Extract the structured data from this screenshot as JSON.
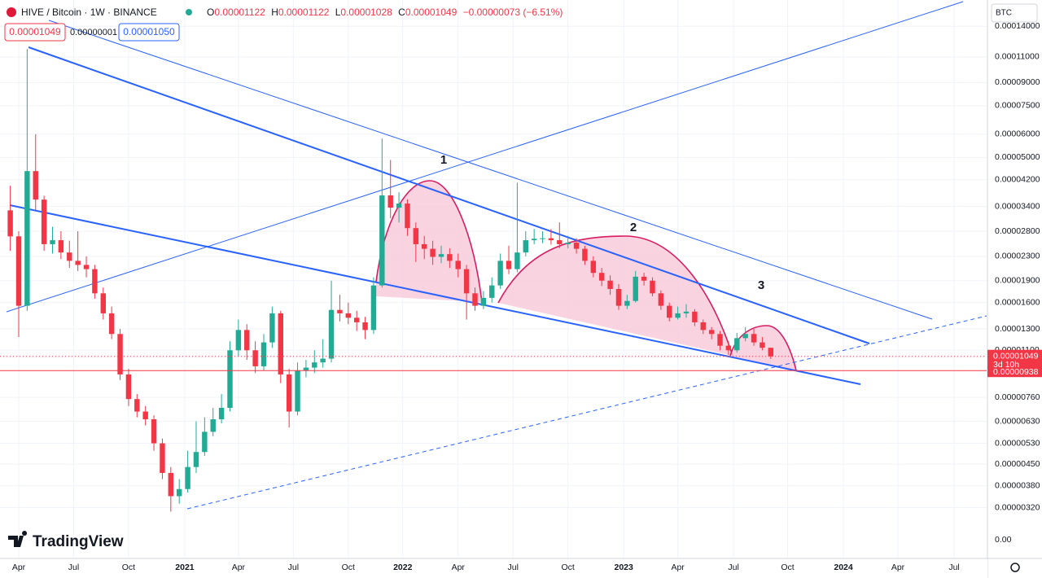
{
  "header": {
    "symbol": "HIVE / Bitcoin · 1W · BINANCE",
    "ohlc": [
      {
        "key": "O",
        "value": "0.00001122"
      },
      {
        "key": "H",
        "value": "0.00001122"
      },
      {
        "key": "L",
        "value": "0.00001028"
      },
      {
        "key": "C",
        "value": "0.00001049"
      }
    ],
    "change": "−0.00000073 (−6.51%)",
    "sell": "0.00001049",
    "spread": "0.00000001",
    "buy": "0.00001050",
    "currency": "BTC"
  },
  "branding": "TradingView",
  "chart_data": {
    "type": "candlestick",
    "log_scale": true,
    "grid": true,
    "up_color": "#22ab94",
    "down_color": "#f23645",
    "x": [
      -2,
      0,
      2,
      4,
      6,
      8,
      10,
      12,
      14,
      16,
      18,
      20,
      22,
      24,
      26,
      28,
      30,
      32,
      34,
      36,
      38,
      40,
      42,
      44,
      46,
      48,
      50,
      52,
      54,
      56,
      58,
      60,
      62,
      64,
      66,
      68,
      70,
      72,
      74,
      76,
      78,
      80,
      82,
      84,
      86,
      88,
      90,
      92,
      94,
      96,
      98,
      100,
      102,
      104,
      106,
      108,
      110,
      112,
      114,
      116,
      118,
      120,
      122,
      124,
      126,
      128,
      130,
      132,
      134,
      136,
      138,
      140,
      142,
      144,
      146,
      148,
      150,
      152,
      154,
      156,
      158,
      160,
      162,
      164,
      166,
      168,
      170,
      172,
      174,
      176,
      178
    ],
    "open": [
      3.3e-05,
      2.69e-05,
      1.56e-05,
      4.49e-05,
      3.59e-05,
      2.53e-05,
      2.61e-05,
      2.37e-05,
      2.22e-05,
      2.15e-05,
      2.08e-05,
      1.72e-05,
      1.47e-05,
      1.25e-05,
      9.1e-06,
      7.5e-06,
      6.8e-06,
      6.4e-06,
      5.3e-06,
      4.2e-06,
      3.5e-06,
      3.7e-06,
      4.4e-06,
      4.95e-06,
      5.8e-06,
      6.4e-06,
      7e-06,
      1.1e-05,
      1.29e-05,
      1.1e-05,
      9.7e-06,
      1.17e-05,
      1.47e-05,
      9.1e-06,
      6.8e-06,
      9.4e-06,
      9.6e-06,
      1e-05,
      1.03e-05,
      1.51e-05,
      1.47e-05,
      1.42e-05,
      1.37e-05,
      1.29e-05,
      1.83e-05,
      3.71e-05,
      3.37e-05,
      3.48e-05,
      2.87e-05,
      2.53e-05,
      2.44e-05,
      2.29e-05,
      2.34e-05,
      2.22e-05,
      2.08e-05,
      1.72e-05,
      1.56e-05,
      1.66e-05,
      1.83e-05,
      2.22e-05,
      2.08e-05,
      2.37e-05,
      2.61e-05,
      2.64e-05,
      2.65e-05,
      2.61e-05,
      2.53e-05,
      2.56e-05,
      2.44e-05,
      2.22e-05,
      2.02e-05,
      1.9e-05,
      1.78e-05,
      1.56e-05,
      1.62e-05,
      1.96e-05,
      1.9e-05,
      1.72e-05,
      1.56e-05,
      1.42e-05,
      1.47e-05,
      1.49e-05,
      1.37e-05,
      1.29e-05,
      1.25e-05,
      1.14e-05,
      1.1e-05,
      1.21e-05,
      1.25e-05,
      1.17e-05,
      1.122e-05
    ],
    "high": [
      4e-05,
      2.8e-05,
      0.000117,
      6e-05,
      3.7e-05,
      2.9e-05,
      2.8e-05,
      2.6e-05,
      2.8e-05,
      2.3e-05,
      2.15e-05,
      1.8e-05,
      1.55e-05,
      1.3e-05,
      9.5e-06,
      7.8e-06,
      7.1e-06,
      6.6e-06,
      5.5e-06,
      4.4e-06,
      4e-06,
      5e-06,
      6.3e-06,
      6.5e-06,
      7e-06,
      7.8e-06,
      1.18e-05,
      1.4e-05,
      1.35e-05,
      1.18e-05,
      1.25e-05,
      1.55e-05,
      1.5e-05,
      9.5e-06,
      1e-05,
      1.02e-05,
      1.1e-05,
      1.2e-05,
      1.9e-05,
      1.7e-05,
      1.6e-05,
      1.5e-05,
      1.43e-05,
      1.95e-05,
      5.8e-05,
      4.9e-05,
      3.8e-05,
      3.6e-05,
      3e-05,
      2.7e-05,
      2.6e-05,
      2.5e-05,
      2.45e-05,
      2.35e-05,
      2.15e-05,
      1.8e-05,
      1.75e-05,
      1.95e-05,
      2.35e-05,
      2.5e-05,
      4.1e-05,
      2.8e-05,
      2.85e-05,
      2.8e-05,
      2.85e-05,
      3e-05,
      2.7e-05,
      2.65e-05,
      2.5e-05,
      2.3e-05,
      2.1e-05,
      1.98e-05,
      1.85e-05,
      1.7e-05,
      2.05e-05,
      2.02e-05,
      1.95e-05,
      1.76e-05,
      1.6e-05,
      1.55e-05,
      1.58e-05,
      1.52e-05,
      1.4e-05,
      1.32e-05,
      1.28e-05,
      1.18e-05,
      1.26e-05,
      1.32e-05,
      1.3e-05,
      1.22e-05,
      1.122e-05
    ],
    "low": [
      2.4e-05,
      1.22e-05,
      1.5e-05,
      3.3e-05,
      2.4e-05,
      2.35e-05,
      2.25e-05,
      2.1e-05,
      2.05e-05,
      1.95e-05,
      1.65e-05,
      1.4e-05,
      1.2e-05,
      8.7e-06,
      7.1e-06,
      6.5e-06,
      6.1e-06,
      5e-06,
      4e-06,
      3.1e-06,
      3.3e-06,
      3.6e-06,
      4.2e-06,
      4.8e-06,
      5.6e-06,
      6.2e-06,
      6.8e-06,
      1.05e-05,
      1.02e-05,
      9.2e-06,
      9.4e-06,
      1.12e-05,
      8.5e-06,
      6e-06,
      6.6e-06,
      8.9e-06,
      9.2e-06,
      9.6e-06,
      1e-05,
      1.38e-05,
      1.35e-05,
      1.28e-05,
      1.2e-05,
      1.25e-05,
      1.8e-05,
      3.1e-05,
      3e-05,
      2.7e-05,
      2.2e-05,
      2.25e-05,
      2.15e-05,
      2.18e-05,
      2.1e-05,
      1.95e-05,
      1.4e-05,
      1.5e-05,
      1.52e-05,
      1.6e-05,
      1.78e-05,
      2e-05,
      2.03e-05,
      2.3e-05,
      2.53e-05,
      2.55e-05,
      2.52e-05,
      2.45e-05,
      2.45e-05,
      2.35e-05,
      2.15e-05,
      1.95e-05,
      1.82e-05,
      1.7e-05,
      1.51e-05,
      1.52e-05,
      1.6e-05,
      1.83e-05,
      1.68e-05,
      1.51e-05,
      1.38e-05,
      1.4e-05,
      1.42e-05,
      1.33e-05,
      1.25e-05,
      1.2e-05,
      1.1e-05,
      1.06e-05,
      1.08e-05,
      1.18e-05,
      1.14e-05,
      1.1e-05,
      1.028e-05
    ],
    "close": [
      2.69e-05,
      1.56e-05,
      4.49e-05,
      3.59e-05,
      2.53e-05,
      2.61e-05,
      2.37e-05,
      2.22e-05,
      2.15e-05,
      2.08e-05,
      1.72e-05,
      1.47e-05,
      1.25e-05,
      9.1e-06,
      7.5e-06,
      6.8e-06,
      6.4e-06,
      5.3e-06,
      4.2e-06,
      3.5e-06,
      3.7e-06,
      4.4e-06,
      4.95e-06,
      5.8e-06,
      6.4e-06,
      7e-06,
      1.1e-05,
      1.29e-05,
      1.1e-05,
      9.7e-06,
      1.17e-05,
      1.47e-05,
      9.1e-06,
      6.8e-06,
      9.4e-06,
      9.6e-06,
      1e-05,
      1.03e-05,
      1.51e-05,
      1.47e-05,
      1.42e-05,
      1.37e-05,
      1.29e-05,
      1.83e-05,
      3.71e-05,
      3.37e-05,
      3.48e-05,
      2.87e-05,
      2.53e-05,
      2.44e-05,
      2.29e-05,
      2.34e-05,
      2.22e-05,
      2.08e-05,
      1.72e-05,
      1.56e-05,
      1.66e-05,
      1.83e-05,
      2.22e-05,
      2.08e-05,
      2.37e-05,
      2.61e-05,
      2.64e-05,
      2.65e-05,
      2.61e-05,
      2.53e-05,
      2.56e-05,
      2.44e-05,
      2.22e-05,
      2.02e-05,
      1.9e-05,
      1.78e-05,
      1.56e-05,
      1.62e-05,
      1.96e-05,
      1.9e-05,
      1.72e-05,
      1.56e-05,
      1.42e-05,
      1.47e-05,
      1.49e-05,
      1.37e-05,
      1.29e-05,
      1.25e-05,
      1.14e-05,
      1.1e-05,
      1.21e-05,
      1.25e-05,
      1.17e-05,
      1.122e-05,
      1.049e-05
    ],
    "xlim": [
      -4.43,
      229.1
    ],
    "xticks": [
      {
        "value": 0,
        "label": "Apr"
      },
      {
        "value": 13,
        "label": "Jul"
      },
      {
        "value": 26,
        "label": "Oct"
      },
      {
        "value": 39.3,
        "label": "2021"
      },
      {
        "value": 52,
        "label": "Apr"
      },
      {
        "value": 65,
        "label": "Jul"
      },
      {
        "value": 78,
        "label": "Oct"
      },
      {
        "value": 90.9,
        "label": "2022"
      },
      {
        "value": 104,
        "label": "Apr"
      },
      {
        "value": 117,
        "label": "Jul"
      },
      {
        "value": 130,
        "label": "Oct"
      },
      {
        "value": 143.2,
        "label": "2023"
      },
      {
        "value": 156,
        "label": "Apr"
      },
      {
        "value": 169.2,
        "label": "Jul"
      },
      {
        "value": 182,
        "label": "Oct"
      },
      {
        "value": 195.2,
        "label": "2024"
      },
      {
        "value": 208.1,
        "label": "Apr"
      },
      {
        "value": 221.4,
        "label": "Jul"
      }
    ],
    "ylim": [
      2.16e-06,
      0.000172
    ],
    "yticks": [
      {
        "value": 0.00014,
        "label": "0.00014000"
      },
      {
        "value": 0.00011,
        "label": "0.00011000"
      },
      {
        "value": 9e-05,
        "label": "0.00009000"
      },
      {
        "value": 7.5e-05,
        "label": "0.00007500"
      },
      {
        "value": 6e-05,
        "label": "0.00006000"
      },
      {
        "value": 5e-05,
        "label": "0.00005000"
      },
      {
        "value": 4.2e-05,
        "label": "0.00004200"
      },
      {
        "value": 3.4e-05,
        "label": "0.00003400"
      },
      {
        "value": 2.8e-05,
        "label": "0.00002800"
      },
      {
        "value": 2.3e-05,
        "label": "0.00002300"
      },
      {
        "value": 1.9e-05,
        "label": "0.00001900"
      },
      {
        "value": 1.6e-05,
        "label": "0.00001600"
      },
      {
        "value": 1.3e-05,
        "label": "0.00001300"
      },
      {
        "value": 1.1e-05,
        "label": "0.00001100"
      },
      {
        "value": 7.6e-06,
        "label": "0.00000760"
      },
      {
        "value": 6.3e-06,
        "label": "0.00000630"
      },
      {
        "value": 5.3e-06,
        "label": "0.00000530"
      },
      {
        "value": 4.5e-06,
        "label": "0.00000450"
      },
      {
        "value": 3.8e-06,
        "label": "0.00000380"
      },
      {
        "value": 3.2e-06,
        "label": "0.00000320"
      },
      {
        "value": 0,
        "label": "0.00"
      }
    ],
    "last_price": {
      "value": 1.049e-05,
      "label": "0.00001049",
      "countdown": "3d 10h"
    },
    "price_line": {
      "value": 9.38e-06,
      "label": "0.00000938"
    },
    "annotations": [
      "1",
      "2",
      "3"
    ]
  }
}
